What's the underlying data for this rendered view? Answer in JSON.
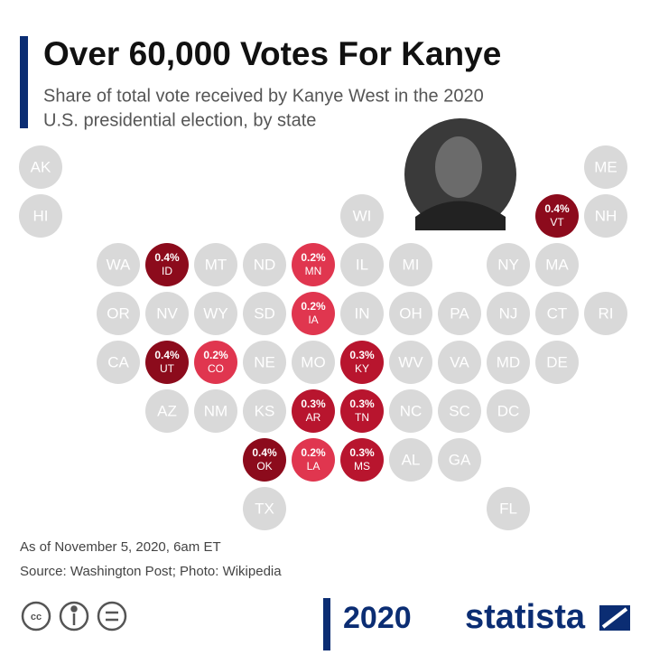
{
  "header": {
    "title": "Over 60,000 Votes For Kanye",
    "subtitle_lines": [
      "Share of total vote received by Kanye West in the 2020",
      "U.S. presidential election, by state"
    ]
  },
  "tiles": [
    {
      "label": "AK"
    },
    {
      "label": "ME"
    },
    {
      "label": "HI"
    },
    {
      "label": "WI"
    },
    {
      "label": "VT",
      "value": 0.4,
      "value_label": "0.4%",
      "color": "#8c0b1c"
    },
    {
      "label": "NH"
    },
    {
      "label": "WA"
    },
    {
      "label": "ID",
      "value": 0.4,
      "value_label": "0.4%",
      "color": "#8c0b1c"
    },
    {
      "label": "MT"
    },
    {
      "label": "ND"
    },
    {
      "label": "MN",
      "value": 0.2,
      "value_label": "0.2%",
      "color": "#e0364f"
    },
    {
      "label": "IL"
    },
    {
      "label": "MI"
    },
    {
      "label": "NY"
    },
    {
      "label": "MA"
    },
    {
      "label": "OR"
    },
    {
      "label": "NV"
    },
    {
      "label": "WY"
    },
    {
      "label": "SD"
    },
    {
      "label": "IA",
      "value": 0.2,
      "value_label": "0.2%",
      "color": "#e0364f"
    },
    {
      "label": "IN"
    },
    {
      "label": "OH"
    },
    {
      "label": "PA"
    },
    {
      "label": "NJ"
    },
    {
      "label": "CT"
    },
    {
      "label": "RI"
    },
    {
      "label": "CA"
    },
    {
      "label": "UT",
      "value": 0.4,
      "value_label": "0.4%",
      "color": "#8c0b1c"
    },
    {
      "label": "CO",
      "value": 0.2,
      "value_label": "0.2%",
      "color": "#e0364f"
    },
    {
      "label": "NE"
    },
    {
      "label": "MO"
    },
    {
      "label": "KY",
      "value": 0.3,
      "value_label": "0.3%",
      "color": "#b8152e"
    },
    {
      "label": "WV"
    },
    {
      "label": "VA"
    },
    {
      "label": "MD"
    },
    {
      "label": "DE"
    },
    {
      "label": "AZ"
    },
    {
      "label": "NM"
    },
    {
      "label": "KS"
    },
    {
      "label": "AR",
      "value": 0.3,
      "value_label": "0.3%",
      "color": "#b8152e"
    },
    {
      "label": "TN",
      "value": 0.3,
      "value_label": "0.3%",
      "color": "#b8152e"
    },
    {
      "label": "NC"
    },
    {
      "label": "SC"
    },
    {
      "label": "DC"
    },
    {
      "label": "OK",
      "value": 0.4,
      "value_label": "0.4%",
      "color": "#8c0b1c"
    },
    {
      "label": "LA",
      "value": 0.2,
      "value_label": "0.2%",
      "color": "#e0364f"
    },
    {
      "label": "MS",
      "value": 0.3,
      "value_label": "0.3%",
      "color": "#b8152e"
    },
    {
      "label": "AL"
    },
    {
      "label": "GA"
    },
    {
      "label": "TX"
    },
    {
      "label": "FL"
    }
  ],
  "footer": {
    "note": "As of November 5, 2020, 6am ET",
    "source": "Source: Washington Post; Photo: Wikipedia",
    "year_badge": "2020",
    "brand": "statista"
  }
}
